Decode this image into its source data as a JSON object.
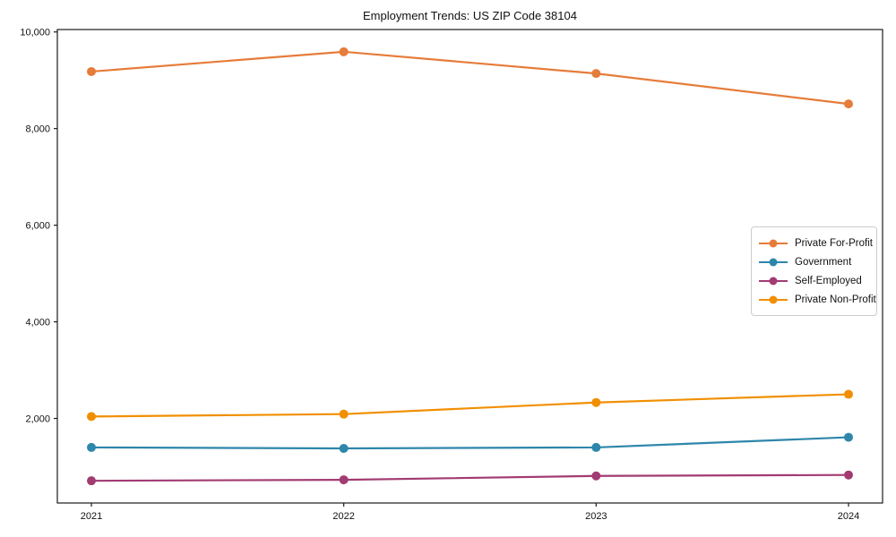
{
  "chart_data": {
    "type": "line",
    "title": "Employment Trends: US ZIP Code 38104",
    "xlabel": "",
    "ylabel": "",
    "categories": [
      "2021",
      "2022",
      "2023",
      "2024"
    ],
    "series": [
      {
        "name": "Private For-Profit",
        "color": "#E67C3A",
        "values": [
          9180,
          9590,
          9140,
          8510
        ]
      },
      {
        "name": "Government",
        "color": "#2E86AB",
        "values": [
          1400,
          1380,
          1400,
          1610
        ]
      },
      {
        "name": "Self-Employed",
        "color": "#A23B72",
        "values": [
          710,
          730,
          810,
          830
        ]
      },
      {
        "name": "Private Non-Profit",
        "color": "#F18F01",
        "values": [
          2040,
          2090,
          2330,
          2500
        ]
      }
    ],
    "ylim": [
      250,
      10050
    ],
    "yticks": [
      2000,
      4000,
      6000,
      8000,
      10000
    ],
    "grid": false,
    "legend_position": "center right",
    "marker": "circle",
    "axis_color": "#1a1a1a"
  }
}
